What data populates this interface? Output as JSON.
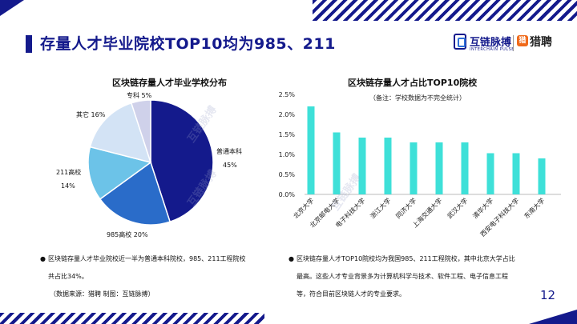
{
  "header": {
    "title": "存量人才毕业院校TOP10均为985、211",
    "logo_left_name": "互链脉搏",
    "logo_left_sub": "INTERCHAIN PULSE",
    "logo_right_name": "猎聘",
    "logo_right_mark": "猎"
  },
  "left": {
    "title": "区块链存量人才毕业学校分布",
    "bullet_line1": "区块链存量人才毕业院校近一半为普通本科院校，985、211工程院校",
    "bullet_line2": "共占比34%。",
    "source": "（数据来源：猎聘   制图：互链脉搏）"
  },
  "right": {
    "title": "区块链存量人才占比TOP10院校",
    "note": "（备注：学校数据为不完全统计）",
    "bullet_line1": "区块链存量人才TOP10院校均为我国985、211工程院校，其中北京大学占比",
    "bullet_line2": "最高。这些人才专业背景多为计算机科学与技术、软件工程、电子信息工程",
    "bullet_line3": "等，符合目前区块链人才的专业要求。"
  },
  "page_number": "12",
  "watermark": "互链脉搏",
  "chart_data": [
    {
      "type": "pie",
      "title": "区块链存量人才毕业学校分布",
      "slices": [
        {
          "label": "普通本科",
          "value": 45,
          "display": "45%",
          "color": "#141a8c"
        },
        {
          "label": "985高校",
          "value": 20,
          "display": "20%",
          "color": "#2a6cc9"
        },
        {
          "label": "211高校",
          "value": 14,
          "display": "14%",
          "color": "#6cc3e8"
        },
        {
          "label": "其它",
          "value": 16,
          "display": "16%",
          "color": "#d3e3f5"
        },
        {
          "label": "专科",
          "value": 5,
          "display": "5%",
          "color": "#cfd1ea"
        }
      ]
    },
    {
      "type": "bar",
      "title": "区块链存量人才占比TOP10院校",
      "categories": [
        "北京大学",
        "北京邮电大学",
        "电子科技大学",
        "浙江大学",
        "同济大学",
        "上海交通大学",
        "武汉大学",
        "清华大学",
        "西安电子科技大学",
        "东南大学"
      ],
      "values": [
        2.2,
        1.55,
        1.42,
        1.42,
        1.3,
        1.3,
        1.3,
        1.03,
        1.03,
        0.9
      ],
      "ylim": [
        0,
        2.5
      ],
      "yticks": [
        "0.0%",
        "0.5%",
        "1.0%",
        "1.5%",
        "2.0%",
        "2.5%"
      ],
      "color": "#3ee0d8"
    }
  ]
}
